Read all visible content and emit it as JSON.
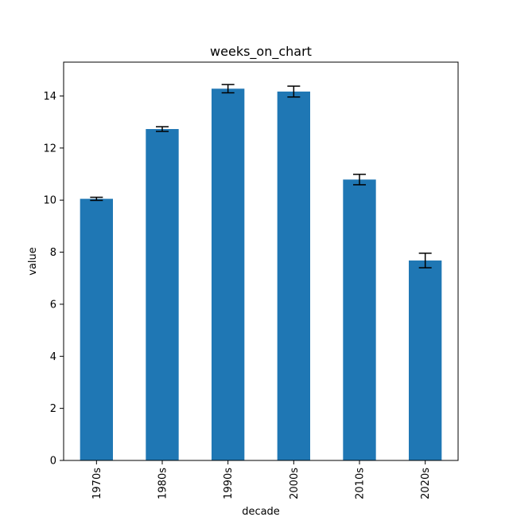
{
  "chart_data": {
    "type": "bar",
    "title": "weeks_on_chart",
    "xlabel": "decade",
    "ylabel": "value",
    "categories": [
      "1970s",
      "1980s",
      "1990s",
      "2000s",
      "2010s",
      "2020s"
    ],
    "values": [
      10.05,
      12.73,
      14.28,
      14.17,
      10.79,
      7.68
    ],
    "errors": [
      0.06,
      0.09,
      0.16,
      0.21,
      0.2,
      0.28
    ],
    "ylim": [
      0,
      15.3
    ],
    "yticks": [
      0,
      2,
      4,
      6,
      8,
      10,
      12,
      14
    ],
    "grid": false,
    "bar_color": "#1f77b4",
    "error_color": "#000000"
  }
}
